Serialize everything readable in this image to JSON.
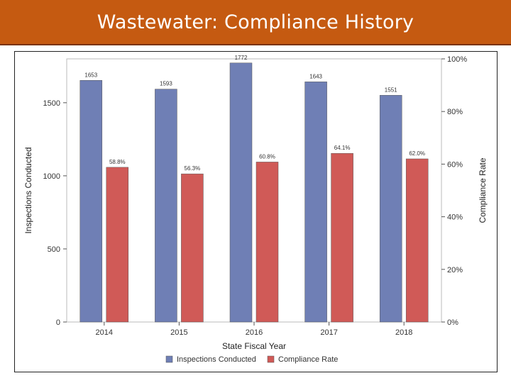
{
  "header": {
    "title": "Wastewater: Compliance History"
  },
  "colors": {
    "header_bg": "#c55a11",
    "series_inspections": "#6f7fb5",
    "series_compliance": "#d05a57"
  },
  "chart_data": {
    "type": "bar",
    "categories": [
      "2014",
      "2015",
      "2016",
      "2017",
      "2018"
    ],
    "series": [
      {
        "name": "Inspections Conducted",
        "axis": "left",
        "values": [
          1653,
          1593,
          1772,
          1643,
          1551
        ],
        "labels": [
          "1653",
          "1593",
          "1772",
          "1643",
          "1551"
        ]
      },
      {
        "name": "Compliance Rate",
        "axis": "right",
        "values": [
          58.8,
          56.3,
          60.8,
          64.1,
          62.0
        ],
        "labels": [
          "58.8%",
          "56.3%",
          "60.8%",
          "64.1%",
          "62.0%"
        ]
      }
    ],
    "xlabel": "State Fiscal Year",
    "ylabel": "Inspections Conducted",
    "y2label": "Compliance Rate",
    "ylim": [
      0,
      1800
    ],
    "y2lim": [
      0,
      100
    ],
    "yticks": [
      "0",
      "500",
      "1000",
      "1500"
    ],
    "y2ticks": [
      "0%",
      "20%",
      "40%",
      "60%",
      "80%",
      "100%"
    ],
    "grid": false,
    "legend_position": "bottom"
  }
}
